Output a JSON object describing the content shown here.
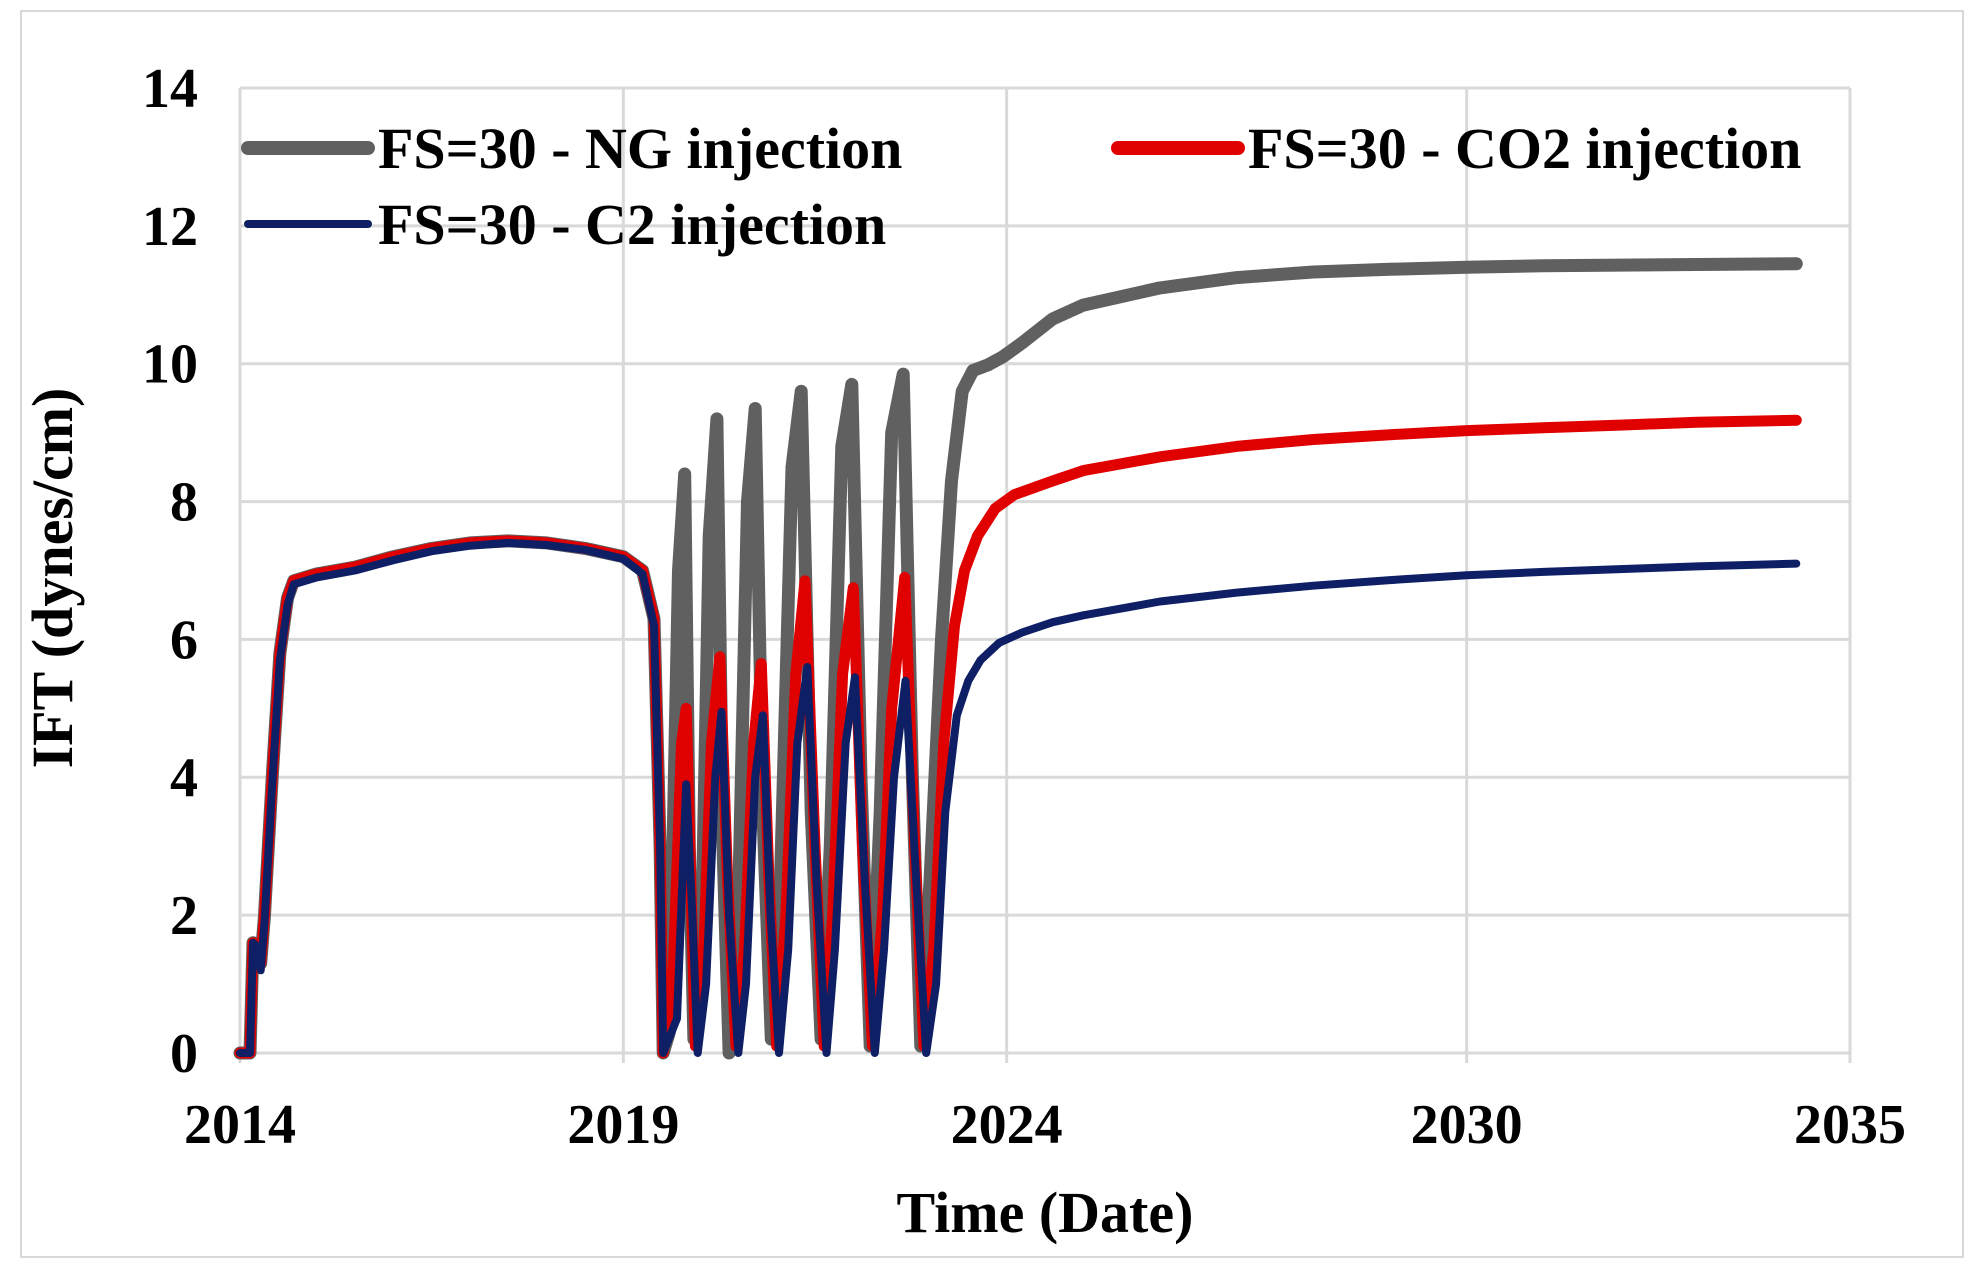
{
  "chart_data": {
    "type": "line",
    "title": "",
    "xlabel": "Time (Date)",
    "ylabel": "IFT (dynes/cm)",
    "xlim": [
      2014,
      2035
    ],
    "ylim": [
      0,
      14
    ],
    "grid": true,
    "legend_position": "top",
    "x_ticks": [
      {
        "value": 2014,
        "label": "2014"
      },
      {
        "value": 2019,
        "label": "2019"
      },
      {
        "value": 2024,
        "label": "2024"
      },
      {
        "value": 2030,
        "label": "2030"
      },
      {
        "value": 2035,
        "label": "2035"
      }
    ],
    "y_ticks": [
      0,
      2,
      4,
      6,
      8,
      10,
      12,
      14
    ],
    "series": [
      {
        "name": "FS=30 - NG injection",
        "color": "#606060",
        "points": [
          [
            2014.0,
            0
          ],
          [
            2014.13,
            0
          ],
          [
            2014.17,
            1.6
          ],
          [
            2014.22,
            1.55
          ],
          [
            2014.27,
            1.3
          ],
          [
            2014.32,
            2.0
          ],
          [
            2014.42,
            4.0
          ],
          [
            2014.52,
            5.8
          ],
          [
            2014.62,
            6.6
          ],
          [
            2014.7,
            6.85
          ],
          [
            2015.0,
            6.95
          ],
          [
            2015.5,
            7.05
          ],
          [
            2016.0,
            7.2
          ],
          [
            2016.5,
            7.32
          ],
          [
            2017.0,
            7.4
          ],
          [
            2017.5,
            7.43
          ],
          [
            2018.0,
            7.4
          ],
          [
            2018.5,
            7.32
          ],
          [
            2019.0,
            7.2
          ],
          [
            2019.25,
            7.0
          ],
          [
            2019.4,
            6.3
          ],
          [
            2019.48,
            3.0
          ],
          [
            2019.52,
            0.0
          ],
          [
            2019.6,
            0.3
          ],
          [
            2019.72,
            7.0
          ],
          [
            2019.8,
            8.4
          ],
          [
            2019.86,
            3.0
          ],
          [
            2019.92,
            0.2
          ],
          [
            2020.02,
            1.5
          ],
          [
            2020.12,
            7.5
          ],
          [
            2020.22,
            9.2
          ],
          [
            2020.3,
            3.0
          ],
          [
            2020.38,
            0.0
          ],
          [
            2020.5,
            2.0
          ],
          [
            2020.62,
            8.0
          ],
          [
            2020.72,
            9.35
          ],
          [
            2020.82,
            3.5
          ],
          [
            2020.93,
            0.2
          ],
          [
            2021.05,
            2.5
          ],
          [
            2021.2,
            8.5
          ],
          [
            2021.32,
            9.6
          ],
          [
            2021.45,
            3.5
          ],
          [
            2021.58,
            0.2
          ],
          [
            2021.7,
            3.0
          ],
          [
            2021.85,
            8.8
          ],
          [
            2021.98,
            9.7
          ],
          [
            2022.1,
            4.0
          ],
          [
            2022.22,
            0.1
          ],
          [
            2022.35,
            3.5
          ],
          [
            2022.5,
            9.0
          ],
          [
            2022.65,
            9.85
          ],
          [
            2022.77,
            4.0
          ],
          [
            2022.88,
            0.1
          ],
          [
            2023.0,
            2.5
          ],
          [
            2023.15,
            6.0
          ],
          [
            2023.28,
            8.3
          ],
          [
            2023.42,
            9.6
          ],
          [
            2023.56,
            9.9
          ],
          [
            2023.75,
            9.98
          ],
          [
            2023.95,
            10.1
          ],
          [
            2024.2,
            10.3
          ],
          [
            2024.6,
            10.65
          ],
          [
            2025.0,
            10.85
          ],
          [
            2026.0,
            11.1
          ],
          [
            2027.0,
            11.25
          ],
          [
            2028.0,
            11.33
          ],
          [
            2029.0,
            11.37
          ],
          [
            2030.0,
            11.4
          ],
          [
            2031.0,
            11.42
          ],
          [
            2032.0,
            11.43
          ],
          [
            2033.0,
            11.44
          ],
          [
            2034.3,
            11.45
          ]
        ]
      },
      {
        "name": "FS=30 - CO2 injection",
        "color": "#e00000",
        "points": [
          [
            2014.0,
            0
          ],
          [
            2014.13,
            0
          ],
          [
            2014.17,
            1.6
          ],
          [
            2014.22,
            1.55
          ],
          [
            2014.27,
            1.3
          ],
          [
            2014.32,
            2.0
          ],
          [
            2014.42,
            4.0
          ],
          [
            2014.52,
            5.8
          ],
          [
            2014.62,
            6.6
          ],
          [
            2014.7,
            6.85
          ],
          [
            2015.0,
            6.95
          ],
          [
            2015.5,
            7.05
          ],
          [
            2016.0,
            7.2
          ],
          [
            2016.5,
            7.32
          ],
          [
            2017.0,
            7.4
          ],
          [
            2017.5,
            7.43
          ],
          [
            2018.0,
            7.4
          ],
          [
            2018.5,
            7.32
          ],
          [
            2019.0,
            7.2
          ],
          [
            2019.25,
            7.0
          ],
          [
            2019.4,
            6.3
          ],
          [
            2019.48,
            3.0
          ],
          [
            2019.52,
            0.0
          ],
          [
            2019.65,
            1.2
          ],
          [
            2019.76,
            4.5
          ],
          [
            2019.82,
            5.0
          ],
          [
            2019.88,
            2.5
          ],
          [
            2019.94,
            0.1
          ],
          [
            2020.05,
            1.5
          ],
          [
            2020.15,
            4.5
          ],
          [
            2020.26,
            5.75
          ],
          [
            2020.36,
            2.5
          ],
          [
            2020.47,
            0.1
          ],
          [
            2020.58,
            1.5
          ],
          [
            2020.7,
            4.5
          ],
          [
            2020.8,
            5.65
          ],
          [
            2020.9,
            2.5
          ],
          [
            2021.0,
            0.1
          ],
          [
            2021.12,
            2.0
          ],
          [
            2021.25,
            5.5
          ],
          [
            2021.37,
            6.85
          ],
          [
            2021.5,
            3.0
          ],
          [
            2021.62,
            0.1
          ],
          [
            2021.73,
            2.0
          ],
          [
            2021.86,
            5.5
          ],
          [
            2022.0,
            6.75
          ],
          [
            2022.12,
            3.0
          ],
          [
            2022.25,
            0.1
          ],
          [
            2022.38,
            2.0
          ],
          [
            2022.5,
            5.0
          ],
          [
            2022.67,
            6.9
          ],
          [
            2022.8,
            3.0
          ],
          [
            2022.92,
            0.1
          ],
          [
            2023.05,
            1.5
          ],
          [
            2023.18,
            4.5
          ],
          [
            2023.32,
            6.2
          ],
          [
            2023.45,
            7.0
          ],
          [
            2023.62,
            7.5
          ],
          [
            2023.85,
            7.9
          ],
          [
            2024.1,
            8.1
          ],
          [
            2024.6,
            8.3
          ],
          [
            2025.0,
            8.45
          ],
          [
            2026.0,
            8.65
          ],
          [
            2027.0,
            8.8
          ],
          [
            2028.0,
            8.9
          ],
          [
            2029.0,
            8.97
          ],
          [
            2030.0,
            9.03
          ],
          [
            2031.0,
            9.07
          ],
          [
            2032.0,
            9.11
          ],
          [
            2033.0,
            9.15
          ],
          [
            2034.3,
            9.18
          ]
        ]
      },
      {
        "name": "FS=30 - C2 injection",
        "color": "#0f1f66",
        "points": [
          [
            2014.0,
            0
          ],
          [
            2014.13,
            0
          ],
          [
            2014.17,
            1.6
          ],
          [
            2014.22,
            1.55
          ],
          [
            2014.27,
            1.2
          ],
          [
            2014.32,
            1.9
          ],
          [
            2014.42,
            3.9
          ],
          [
            2014.52,
            5.7
          ],
          [
            2014.62,
            6.5
          ],
          [
            2014.7,
            6.8
          ],
          [
            2015.0,
            6.9
          ],
          [
            2015.5,
            7.0
          ],
          [
            2016.0,
            7.15
          ],
          [
            2016.5,
            7.28
          ],
          [
            2017.0,
            7.36
          ],
          [
            2017.5,
            7.4
          ],
          [
            2018.0,
            7.37
          ],
          [
            2018.5,
            7.3
          ],
          [
            2019.0,
            7.17
          ],
          [
            2019.25,
            6.95
          ],
          [
            2019.4,
            6.2
          ],
          [
            2019.48,
            3.0
          ],
          [
            2019.52,
            0.0
          ],
          [
            2019.7,
            0.5
          ],
          [
            2019.82,
            3.9
          ],
          [
            2019.9,
            2.0
          ],
          [
            2019.97,
            0.0
          ],
          [
            2020.08,
            1.0
          ],
          [
            2020.2,
            4.0
          ],
          [
            2020.28,
            4.95
          ],
          [
            2020.38,
            2.0
          ],
          [
            2020.5,
            0.0
          ],
          [
            2020.6,
            1.0
          ],
          [
            2020.72,
            4.0
          ],
          [
            2020.82,
            4.9
          ],
          [
            2020.92,
            2.0
          ],
          [
            2021.03,
            0.0
          ],
          [
            2021.15,
            1.5
          ],
          [
            2021.27,
            4.5
          ],
          [
            2021.4,
            5.6
          ],
          [
            2021.52,
            2.5
          ],
          [
            2021.65,
            0.0
          ],
          [
            2021.76,
            1.5
          ],
          [
            2021.9,
            4.5
          ],
          [
            2022.02,
            5.45
          ],
          [
            2022.15,
            2.5
          ],
          [
            2022.28,
            0.0
          ],
          [
            2022.4,
            1.5
          ],
          [
            2022.53,
            4.0
          ],
          [
            2022.68,
            5.4
          ],
          [
            2022.82,
            2.5
          ],
          [
            2022.95,
            0.0
          ],
          [
            2023.08,
            1.0
          ],
          [
            2023.2,
            3.5
          ],
          [
            2023.35,
            4.9
          ],
          [
            2023.5,
            5.4
          ],
          [
            2023.66,
            5.7
          ],
          [
            2023.9,
            5.95
          ],
          [
            2024.2,
            6.1
          ],
          [
            2024.6,
            6.25
          ],
          [
            2025.0,
            6.35
          ],
          [
            2026.0,
            6.55
          ],
          [
            2027.0,
            6.68
          ],
          [
            2028.0,
            6.78
          ],
          [
            2029.0,
            6.86
          ],
          [
            2030.0,
            6.93
          ],
          [
            2031.0,
            6.98
          ],
          [
            2032.0,
            7.02
          ],
          [
            2033.0,
            7.06
          ],
          [
            2034.3,
            7.1
          ]
        ]
      }
    ]
  }
}
